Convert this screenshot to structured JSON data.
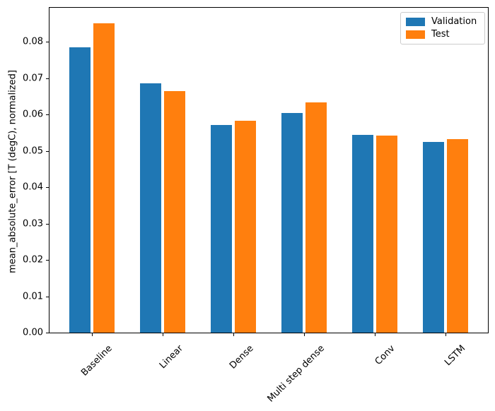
{
  "chart_data": {
    "type": "bar",
    "title": "",
    "categories": [
      "Baseline",
      "Linear",
      "Dense",
      "Multi step dense",
      "Conv",
      "LSTM"
    ],
    "series": [
      {
        "name": "Validation",
        "color": "#1f77b4",
        "values": [
          0.0785,
          0.0687,
          0.0572,
          0.0605,
          0.0545,
          0.0524
        ]
      },
      {
        "name": "Test",
        "color": "#ff7f0e",
        "values": [
          0.0852,
          0.0664,
          0.0583,
          0.0633,
          0.0543,
          0.0533
        ]
      }
    ],
    "xlabel": "",
    "ylabel": "mean_absolute_error [T (degC), normalized]",
    "ylim": [
      0,
      0.0894
    ],
    "yticks": [
      0,
      0.01,
      0.02,
      0.03,
      0.04,
      0.05,
      0.06,
      0.07,
      0.08
    ],
    "ytick_labels": [
      "0.00",
      "0.01",
      "0.02",
      "0.03",
      "0.04",
      "0.05",
      "0.06",
      "0.07",
      "0.08"
    ],
    "xtick_rotation_deg": 45,
    "grid": false,
    "legend": {
      "position": "upper right",
      "entries": [
        "Validation",
        "Test"
      ]
    },
    "colors": {
      "axis": "#000000",
      "background": "#ffffff",
      "legend_border": "#cccccc"
    }
  }
}
